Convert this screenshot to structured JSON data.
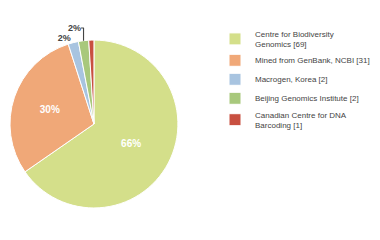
{
  "chart_data": {
    "type": "pie",
    "categories": [
      "Centre for Biodiversity\nGenomics [69]",
      "Mined from GenBank, NCBI [31]",
      "Macrogen, Korea [2]",
      "Beijing Genomics Institute [2]",
      "Canadian Centre for DNA\nBarcoding [1]"
    ],
    "values": [
      66,
      30,
      2,
      2,
      1
    ],
    "value_labels": [
      "66%",
      "30%",
      "2%",
      "2%",
      null
    ],
    "colors": [
      "#d4df8a",
      "#f0a878",
      "#a8c4e0",
      "#a8c87c",
      "#c85040"
    ],
    "data_labels": true,
    "legend": "upper right"
  }
}
